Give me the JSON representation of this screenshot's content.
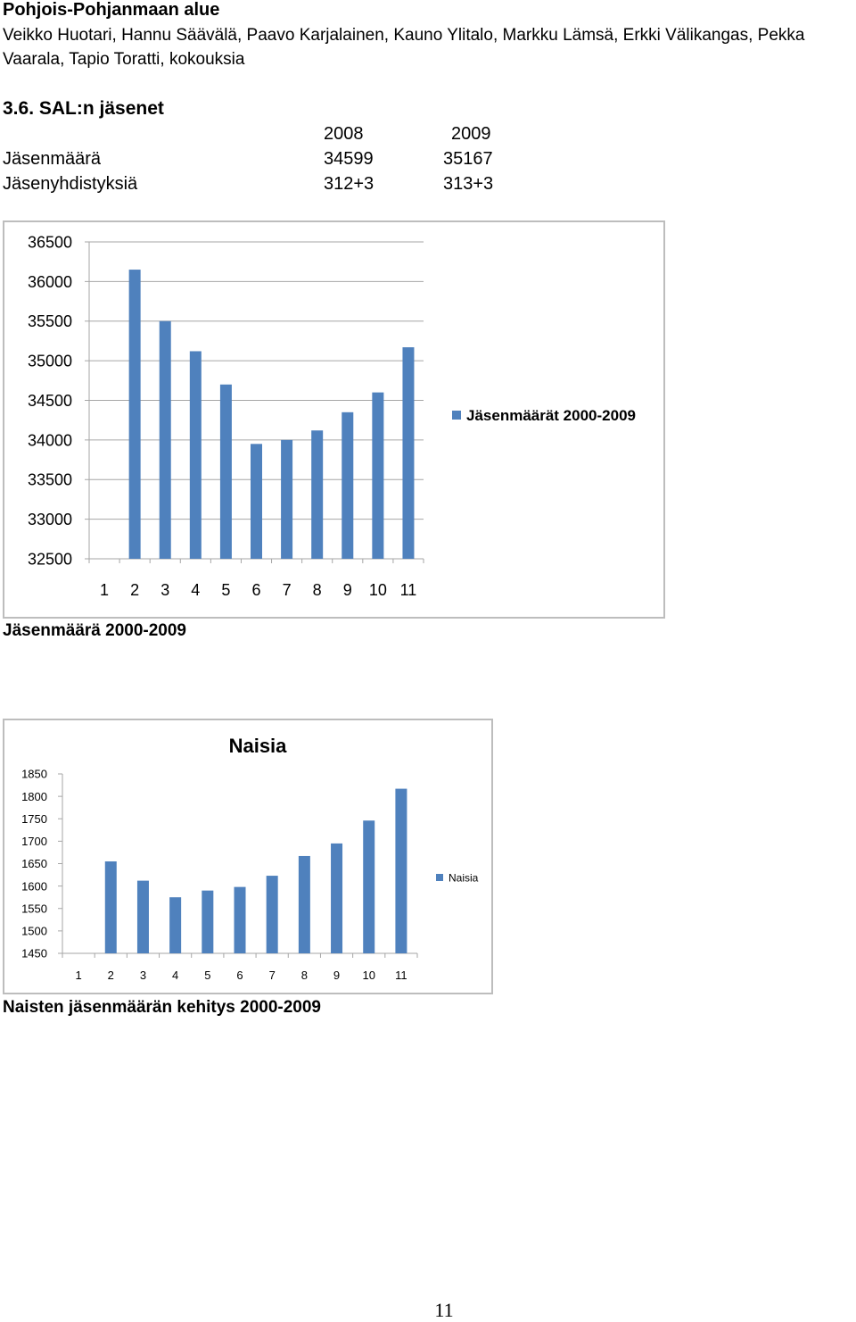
{
  "header": {
    "region": "Pohjois-Pohjanmaan alue",
    "people": "Veikko Huotari, Hannu Säävälä, Paavo Karjalainen, Kauno Ylitalo, Markku Lämsä, Erkki Välikangas, Pekka Vaarala, Tapio Toratti, kokouksia"
  },
  "section": {
    "heading": "3.6. SAL:n jäsenet",
    "table": {
      "columns": [
        "2008",
        "2009"
      ],
      "rows": [
        {
          "label": "Jäsenmäärä",
          "values": [
            "34599",
            "35167"
          ]
        },
        {
          "label": "Jäsenyhdistyksiä",
          "values": [
            "312+3",
            "313+3"
          ]
        }
      ]
    }
  },
  "colors": {
    "bar": "#4f81bd",
    "gridline": "#a6a6a6",
    "frame_border": "#bdbdbd"
  },
  "chart_data": [
    {
      "type": "bar",
      "title": "",
      "caption": "Jäsenmäärä 2000-2009",
      "categories": [
        "1",
        "2",
        "3",
        "4",
        "5",
        "6",
        "7",
        "8",
        "9",
        "10",
        "11"
      ],
      "series": [
        {
          "name": "Jäsenmäärät 2000-2009",
          "values": [
            null,
            36150,
            35500,
            35120,
            34700,
            33950,
            34000,
            34120,
            34350,
            34600,
            35170
          ]
        }
      ],
      "ylim": [
        32500,
        36500
      ],
      "yticks": [
        32500,
        33000,
        33500,
        34000,
        34500,
        35000,
        35500,
        36000,
        36500
      ],
      "grid": true,
      "legend": "right"
    },
    {
      "type": "bar",
      "title": "Naisia",
      "caption": "Naisten jäsenmäärän kehitys 2000-2009",
      "categories": [
        "1",
        "2",
        "3",
        "4",
        "5",
        "6",
        "7",
        "8",
        "9",
        "10",
        "11"
      ],
      "series": [
        {
          "name": "Naisia",
          "values": [
            null,
            1655,
            1612,
            1575,
            1590,
            1598,
            1623,
            1667,
            1695,
            1746,
            1817
          ]
        }
      ],
      "ylim": [
        1450,
        1850
      ],
      "yticks": [
        1450,
        1500,
        1550,
        1600,
        1650,
        1700,
        1750,
        1800,
        1850
      ],
      "grid": false,
      "legend": "right"
    }
  ],
  "footer": {
    "page_number": "11"
  }
}
